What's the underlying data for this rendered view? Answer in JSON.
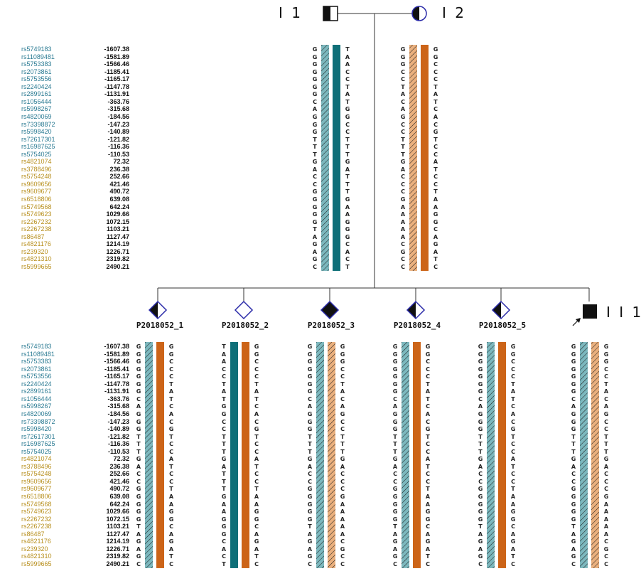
{
  "colors": {
    "snp_blue": "#2b7b93",
    "snp_gold": "#b8901f",
    "teal_solid": "#0f6f78",
    "teal_hatched": "#7cb8be",
    "orange_solid": "#cc6418",
    "orange_hatched": "#eab07e",
    "line": "#333333",
    "symbol_border": "#2a2aa8"
  },
  "generation_labels": {
    "gen1_left": "I 1",
    "gen1_right": "I 2",
    "proband": "I I 1"
  },
  "snps": [
    {
      "id": "rs5749183",
      "pos": "-1607.38",
      "group": "upstream"
    },
    {
      "id": "rs11089481",
      "pos": "-1581.89",
      "group": "upstream"
    },
    {
      "id": "rs5753383",
      "pos": "-1566.46",
      "group": "upstream"
    },
    {
      "id": "rs2073861",
      "pos": "-1185.41",
      "group": "upstream"
    },
    {
      "id": "rs5753556",
      "pos": "-1165.17",
      "group": "upstream"
    },
    {
      "id": "rs2240424",
      "pos": "-1147.78",
      "group": "upstream"
    },
    {
      "id": "rs2899161",
      "pos": "-1131.91",
      "group": "upstream"
    },
    {
      "id": "rs1056444",
      "pos": "-363.76",
      "group": "upstream"
    },
    {
      "id": "rs5998267",
      "pos": "-315.68",
      "group": "upstream"
    },
    {
      "id": "rs4820069",
      "pos": "-184.56",
      "group": "upstream"
    },
    {
      "id": "rs73398872",
      "pos": "-147.23",
      "group": "upstream"
    },
    {
      "id": "rs5998420",
      "pos": "-140.89",
      "group": "upstream"
    },
    {
      "id": "rs72617301",
      "pos": "-121.82",
      "group": "upstream"
    },
    {
      "id": "rs16987625",
      "pos": "-116.36",
      "group": "upstream"
    },
    {
      "id": "rs5754025",
      "pos": "-110.53",
      "group": "upstream"
    },
    {
      "id": "rs4821074",
      "pos": "72.32",
      "group": "downstream"
    },
    {
      "id": "rs3788496",
      "pos": "236.38",
      "group": "downstream"
    },
    {
      "id": "rs5754248",
      "pos": "252.66",
      "group": "downstream"
    },
    {
      "id": "rs9609656",
      "pos": "421.46",
      "group": "downstream"
    },
    {
      "id": "rs9609677",
      "pos": "490.72",
      "group": "downstream"
    },
    {
      "id": "rs6518806",
      "pos": "639.08",
      "group": "downstream"
    },
    {
      "id": "rs5749568",
      "pos": "642.24",
      "group": "downstream"
    },
    {
      "id": "rs5749623",
      "pos": "1029.66",
      "group": "downstream"
    },
    {
      "id": "rs2267232",
      "pos": "1072.15",
      "group": "downstream"
    },
    {
      "id": "rs2267238",
      "pos": "1103.21",
      "group": "downstream"
    },
    {
      "id": "rs86487",
      "pos": "1127.47",
      "group": "downstream"
    },
    {
      "id": "rs4821176",
      "pos": "1214.19",
      "group": "downstream"
    },
    {
      "id": "rs239320",
      "pos": "1226.71",
      "group": "downstream"
    },
    {
      "id": "rs4821310",
      "pos": "2319.82",
      "group": "downstream"
    },
    {
      "id": "rs5999665",
      "pos": "2490.21",
      "group": "downstream"
    }
  ],
  "haplotypes": {
    "A": "GGGGGGGCAGGGTTTGACCGGGGGTAGAGC",
    "B": "TAACCTATGGCCTTTGATTTGAAGGGCACT",
    "C": "GGGCCTACAGCCTTTGACCCGAAAAACGCC",
    "D": "GGCCCTATCACGTCCATCCTAAGGCAGATC"
  },
  "parents": [
    {
      "label": "I 1",
      "haps": [
        "A",
        "B"
      ],
      "bars": [
        "teal_hatched",
        "teal_solid"
      ]
    },
    {
      "label": "I 2",
      "haps": [
        "C",
        "D"
      ],
      "bars": [
        "orange_hatched",
        "orange_solid"
      ]
    }
  ],
  "children": [
    {
      "label": "P2018052_1",
      "haps": [
        "A",
        "D"
      ],
      "bars": [
        "teal_hatched",
        "orange_solid"
      ]
    },
    {
      "label": "P2018052_2",
      "haps": [
        "B",
        "D"
      ],
      "bars": [
        "teal_solid",
        "orange_solid"
      ]
    },
    {
      "label": "P2018052_3",
      "haps": [
        "A",
        "C"
      ],
      "bars": [
        "teal_hatched",
        "orange_hatched"
      ]
    },
    {
      "label": "P2018052_4",
      "haps": [
        "A",
        "D"
      ],
      "bars": [
        "teal_hatched",
        "orange_solid"
      ]
    },
    {
      "label": "P2018052_5",
      "haps": [
        "A",
        "D"
      ],
      "bars": [
        "teal_hatched",
        "orange_solid"
      ]
    },
    {
      "label": "",
      "haps": [
        "A",
        "C"
      ],
      "bars": [
        "teal_hatched",
        "orange_hatched"
      ]
    }
  ]
}
